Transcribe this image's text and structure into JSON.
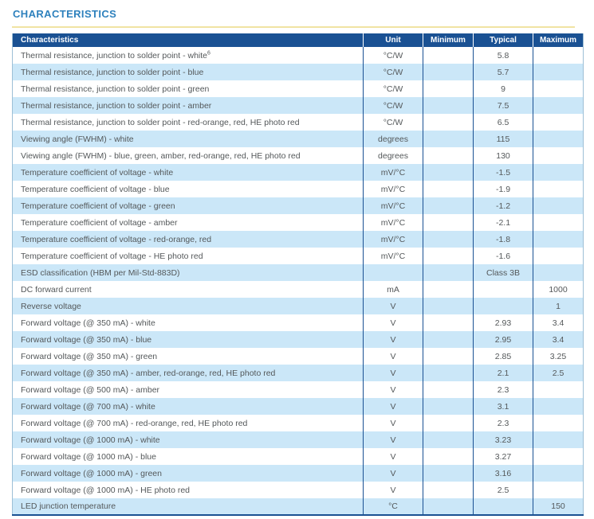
{
  "page": {
    "title": "CHARACTERISTICS"
  },
  "colors": {
    "header_bg": "#1a5193",
    "row_alt_bg": "#cbe7f8",
    "divider": "#1a5193",
    "title": "#2e81bd",
    "rule": "#f1e3a3",
    "text": "#54585a",
    "edge": "#9dbfd6"
  },
  "table": {
    "columns": [
      "Characteristics",
      "Unit",
      "Minimum",
      "Typical",
      "Maximum"
    ],
    "rows": [
      {
        "name": "Thermal resistance, junction to solder point - white",
        "sup": "6",
        "unit": "°C/W",
        "min": "",
        "typ": "5.8",
        "max": ""
      },
      {
        "name": "Thermal resistance, junction to solder point - blue",
        "sup": "",
        "unit": "°C/W",
        "min": "",
        "typ": "5.7",
        "max": ""
      },
      {
        "name": "Thermal resistance, junction to solder point - green",
        "sup": "",
        "unit": "°C/W",
        "min": "",
        "typ": "9",
        "max": ""
      },
      {
        "name": "Thermal resistance, junction to solder point - amber",
        "sup": "",
        "unit": "°C/W",
        "min": "",
        "typ": "7.5",
        "max": ""
      },
      {
        "name": "Thermal resistance, junction to solder point - red-orange, red, HE photo red",
        "sup": "",
        "unit": "°C/W",
        "min": "",
        "typ": "6.5",
        "max": ""
      },
      {
        "name": "Viewing angle (FWHM) - white",
        "sup": "",
        "unit": "degrees",
        "min": "",
        "typ": "115",
        "max": ""
      },
      {
        "name": "Viewing angle (FWHM) - blue, green, amber, red-orange, red, HE photo red",
        "sup": "",
        "unit": "degrees",
        "min": "",
        "typ": "130",
        "max": ""
      },
      {
        "name": "Temperature coefficient of voltage - white",
        "sup": "",
        "unit": "mV/°C",
        "min": "",
        "typ": "-1.5",
        "max": ""
      },
      {
        "name": "Temperature coefficient of voltage - blue",
        "sup": "",
        "unit": "mV/°C",
        "min": "",
        "typ": "-1.9",
        "max": ""
      },
      {
        "name": "Temperature coefficient of voltage - green",
        "sup": "",
        "unit": "mV/°C",
        "min": "",
        "typ": "-1.2",
        "max": ""
      },
      {
        "name": "Temperature coefficient of voltage - amber",
        "sup": "",
        "unit": "mV/°C",
        "min": "",
        "typ": "-2.1",
        "max": ""
      },
      {
        "name": "Temperature coefficient of voltage - red-orange, red",
        "sup": "",
        "unit": "mV/°C",
        "min": "",
        "typ": "-1.8",
        "max": ""
      },
      {
        "name": "Temperature coefficient of voltage - HE photo red",
        "sup": "",
        "unit": "mV/°C",
        "min": "",
        "typ": "-1.6",
        "max": ""
      },
      {
        "name": "ESD classification (HBM per Mil-Std-883D)",
        "sup": "",
        "unit": "",
        "min": "",
        "typ": "Class 3B",
        "max": ""
      },
      {
        "name": "DC forward current",
        "sup": "",
        "unit": "mA",
        "min": "",
        "typ": "",
        "max": "1000"
      },
      {
        "name": "Reverse voltage",
        "sup": "",
        "unit": "V",
        "min": "",
        "typ": "",
        "max": "1"
      },
      {
        "name": "Forward voltage (@ 350 mA) - white",
        "sup": "",
        "unit": "V",
        "min": "",
        "typ": "2.93",
        "max": "3.4"
      },
      {
        "name": "Forward voltage (@ 350 mA) - blue",
        "sup": "",
        "unit": "V",
        "min": "",
        "typ": "2.95",
        "max": "3.4"
      },
      {
        "name": "Forward voltage (@ 350 mA) - green",
        "sup": "",
        "unit": "V",
        "min": "",
        "typ": "2.85",
        "max": "3.25"
      },
      {
        "name": "Forward voltage (@ 350 mA) - amber, red-orange, red, HE photo red",
        "sup": "",
        "unit": "V",
        "min": "",
        "typ": "2.1",
        "max": "2.5"
      },
      {
        "name": "Forward voltage (@ 500 mA) - amber",
        "sup": "",
        "unit": "V",
        "min": "",
        "typ": "2.3",
        "max": ""
      },
      {
        "name": "Forward voltage (@ 700 mA) - white",
        "sup": "",
        "unit": "V",
        "min": "",
        "typ": "3.1",
        "max": ""
      },
      {
        "name": "Forward voltage (@ 700 mA) - red-orange, red, HE photo red",
        "sup": "",
        "unit": "V",
        "min": "",
        "typ": "2.3",
        "max": ""
      },
      {
        "name": "Forward voltage (@ 1000 mA) - white",
        "sup": "",
        "unit": "V",
        "min": "",
        "typ": "3.23",
        "max": ""
      },
      {
        "name": "Forward voltage (@ 1000 mA) - blue",
        "sup": "",
        "unit": "V",
        "min": "",
        "typ": "3.27",
        "max": ""
      },
      {
        "name": "Forward voltage (@ 1000 mA) - green",
        "sup": "",
        "unit": "V",
        "min": "",
        "typ": "3.16",
        "max": ""
      },
      {
        "name": "Forward voltage (@ 1000 mA) - HE photo red",
        "sup": "",
        "unit": "V",
        "min": "",
        "typ": "2.5",
        "max": ""
      },
      {
        "name": "LED junction temperature",
        "sup": "",
        "unit": "°C",
        "min": "",
        "typ": "",
        "max": "150"
      }
    ]
  }
}
